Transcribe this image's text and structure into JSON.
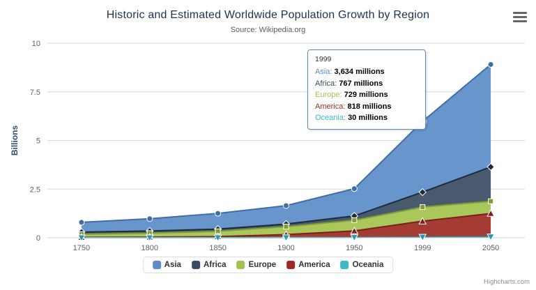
{
  "header": {
    "title": "Historic and Estimated Worldwide Population Growth by Region",
    "subtitle": "Source: Wikipedia.org",
    "title_color": "#1a3353",
    "subtitle_color": "#53606b"
  },
  "export_menu": {
    "icon": "hamburger-menu-icon"
  },
  "chart_data": {
    "type": "area",
    "stacking": "normal",
    "title": "Historic and Estimated Worldwide Population Growth by Region",
    "subtitle": "Source: Wikipedia.org",
    "categories": [
      "1750",
      "1800",
      "1850",
      "1900",
      "1950",
      "1999",
      "2050"
    ],
    "series": [
      {
        "name": "Asia",
        "color": "#5b8cc8",
        "line_color": "#3e6da9",
        "marker": "circle",
        "values": [
          502,
          635,
          809,
          947,
          1402,
          3634,
          5268
        ]
      },
      {
        "name": "Africa",
        "color": "#3a4c62",
        "line_color": "#1d2b3a",
        "marker": "diamond",
        "values": [
          106,
          107,
          111,
          133,
          221,
          767,
          1766
        ]
      },
      {
        "name": "Europe",
        "color": "#a3c24e",
        "line_color": "#7f9c33",
        "marker": "square",
        "values": [
          163,
          203,
          276,
          408,
          547,
          729,
          628
        ]
      },
      {
        "name": "America",
        "color": "#9d2b23",
        "line_color": "#7a1f1a",
        "marker": "triangle",
        "values": [
          18,
          31,
          54,
          156,
          339,
          818,
          1201
        ]
      },
      {
        "name": "Oceania",
        "color": "#3fb7c8",
        "line_color": "#2a96a8",
        "marker": "triangle-down",
        "values": [
          2,
          2,
          2,
          6,
          13,
          30,
          46
        ]
      }
    ],
    "values_unit": "millions",
    "xlabel": "",
    "ylabel": "Billions",
    "yticks": [
      0,
      2.5,
      5,
      7.5,
      10
    ],
    "ylim": [
      0,
      10
    ],
    "grid": true,
    "legend_position": "bottom",
    "highlight": {
      "series": "Asia",
      "category": "1999"
    }
  },
  "tooltip": {
    "header": "1999",
    "rows": [
      {
        "label": "Asia",
        "value": "3,634 millions"
      },
      {
        "label": "Africa",
        "value": "767 millions"
      },
      {
        "label": "Europe",
        "value": "729 millions"
      },
      {
        "label": "America",
        "value": "818 millions"
      },
      {
        "label": "Oceania",
        "value": "30 millions"
      }
    ]
  },
  "credits": "Highcharts.com"
}
